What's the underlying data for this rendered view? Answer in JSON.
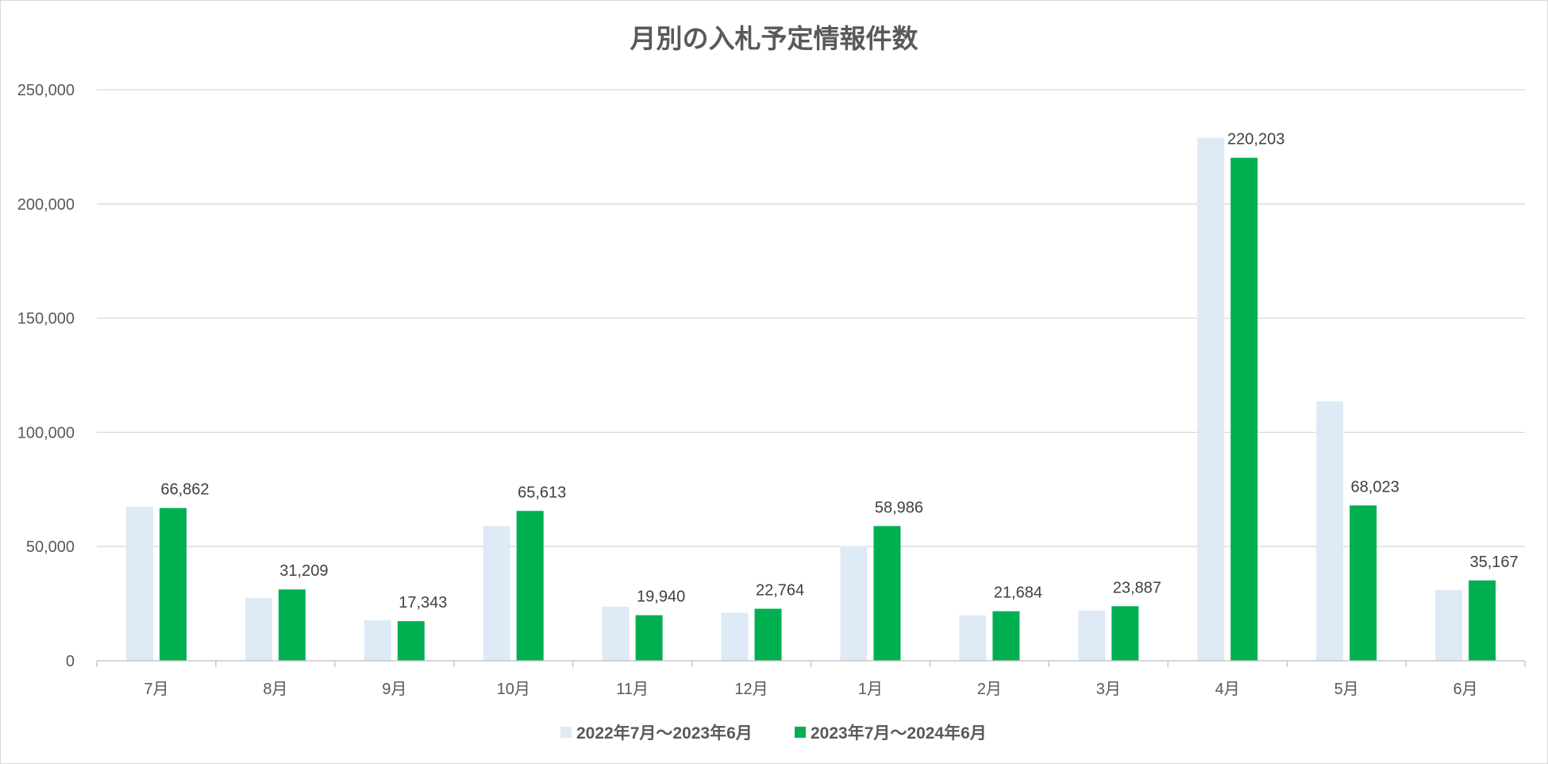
{
  "chart_data": {
    "type": "bar",
    "title": "月別の入札予定情報件数",
    "categories": [
      "7月",
      "8月",
      "9月",
      "10月",
      "11月",
      "12月",
      "1月",
      "2月",
      "3月",
      "4月",
      "5月",
      "6月"
    ],
    "series": [
      {
        "name": "2022年7月～2023年6月",
        "color": "#deeaf6",
        "values": [
          67500,
          27500,
          17700,
          59000,
          23700,
          21000,
          50300,
          19900,
          22000,
          229000,
          113600,
          31000
        ]
      },
      {
        "name": "2023年7月～2024年6月",
        "color": "#00b050",
        "values": [
          66862,
          31209,
          17343,
          65613,
          19940,
          22764,
          58986,
          21684,
          23887,
          220203,
          68023,
          35167
        ],
        "labels": [
          "66,862",
          "31,209",
          "17,343",
          "65,613",
          "19,940",
          "22,764",
          "58,986",
          "21,684",
          "23,887",
          "220,203",
          "68,023",
          "35,167"
        ]
      }
    ],
    "ylim": [
      0,
      250000
    ],
    "yticks": [
      0,
      50000,
      100000,
      150000,
      200000,
      250000
    ],
    "ytick_labels": [
      "0",
      "50,000",
      "100,000",
      "150,000",
      "200,000",
      "250,000"
    ],
    "xlabel": "",
    "ylabel": "",
    "grid": true,
    "legend_position": "bottom"
  }
}
